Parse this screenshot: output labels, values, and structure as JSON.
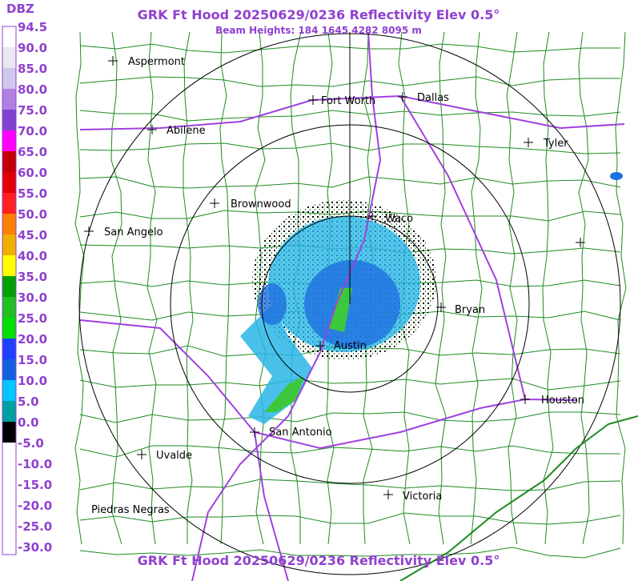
{
  "header": {
    "title": "GRK Ft Hood 20250629/0236 Reflectivity Elev 0.5°",
    "subtitle": "Beam Heights: 184 1645 4282 8095 m"
  },
  "legend": {
    "title": "DBZ",
    "labels": [
      "94.5",
      "90.0",
      "85.0",
      "80.0",
      "75.0",
      "70.0",
      "65.0",
      "60.0",
      "55.0",
      "50.0",
      "45.0",
      "40.0",
      "35.0",
      "30.0",
      "25.0",
      "20.0",
      "15.0",
      "10.0",
      "5.0",
      "0.0",
      "-5.0",
      "-10.0",
      "-15.0",
      "-20.0",
      "-25.0",
      "-30.0"
    ]
  },
  "cities": [
    {
      "name": "Aspermont"
    },
    {
      "name": "Fort Worth"
    },
    {
      "name": "Dallas"
    },
    {
      "name": "Abilene"
    },
    {
      "name": "Tyler"
    },
    {
      "name": "Brownwood"
    },
    {
      "name": "Waco"
    },
    {
      "name": "San Angelo"
    },
    {
      "name": "Bryan"
    },
    {
      "name": "Austin"
    },
    {
      "name": "Houston"
    },
    {
      "name": "San Antonio"
    },
    {
      "name": "Uvalde"
    },
    {
      "name": "Victoria"
    },
    {
      "name": "Piedras Negras"
    }
  ],
  "footer": {
    "title": "GRK Ft Hood 20250629/0236 Reflectivity Elev 0.5°"
  }
}
